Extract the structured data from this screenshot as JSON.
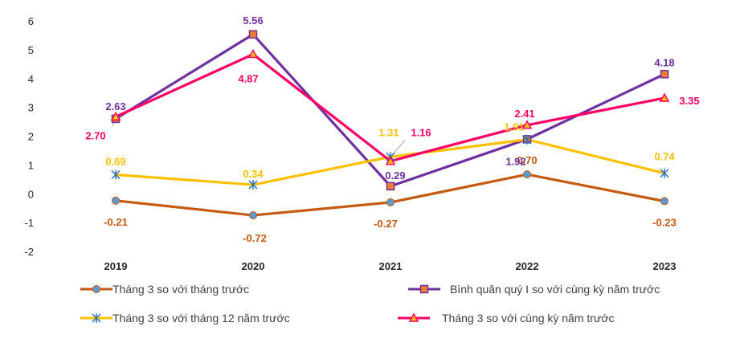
{
  "chart_data": {
    "type": "line",
    "title": "",
    "xlabel": "",
    "ylabel": "",
    "categories": [
      "2019",
      "2020",
      "2021",
      "2022",
      "2023"
    ],
    "ylim": [
      -2,
      6
    ],
    "yticks": [
      6,
      5,
      4,
      3,
      2,
      1,
      0,
      -1,
      -2
    ],
    "grid": false,
    "legend_position": "bottom",
    "series": [
      {
        "name": "Tháng 3 so với tháng trước",
        "values": [
          -0.21,
          -0.72,
          -0.27,
          0.7,
          -0.23
        ],
        "labels": [
          "-0.21",
          "-0.72",
          "-0.27",
          "0.70",
          "-0.23"
        ],
        "color": "#c55a11",
        "marker": "circle"
      },
      {
        "name": "Bình quân quý I so với cùng kỳ năm trước",
        "values": [
          2.63,
          5.56,
          0.29,
          1.92,
          4.18
        ],
        "labels": [
          "2.63",
          "5.56",
          "0.29",
          "1.92",
          "4.18"
        ],
        "color": "#7030a0",
        "marker": "square"
      },
      {
        "name": "Tháng 3 so với tháng 12 năm trước",
        "values": [
          0.69,
          0.34,
          1.31,
          1.91,
          0.74
        ],
        "labels": [
          "0.69",
          "0.34",
          "1.31",
          "1.91",
          "0.74"
        ],
        "color": "#ffc000",
        "marker": "star"
      },
      {
        "name": "Tháng 3 so với cùng kỳ năm trước",
        "values": [
          2.7,
          4.87,
          1.16,
          2.41,
          3.35
        ],
        "labels": [
          "2.70",
          "4.87",
          "1.16",
          "2.41",
          "3.35"
        ],
        "color": "#ff0066",
        "marker": "triangle"
      }
    ]
  }
}
